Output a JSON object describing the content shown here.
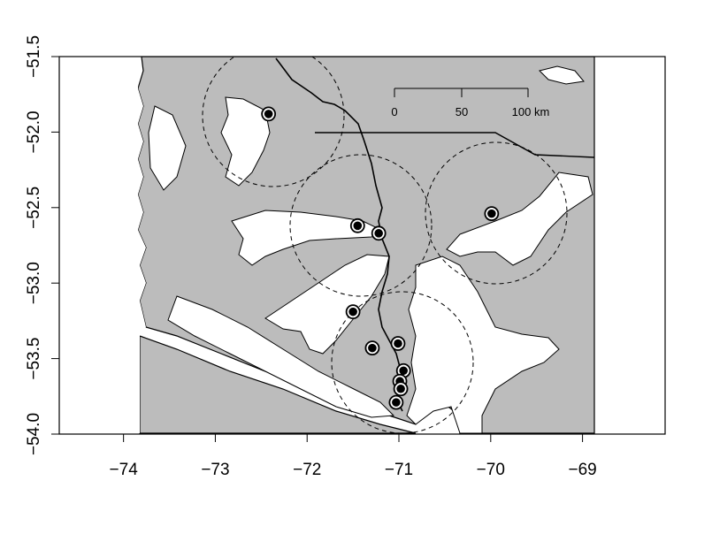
{
  "chart_data": {
    "type": "scatter",
    "x_ticks": [
      "−74",
      "−73",
      "−72",
      "−71",
      "−70",
      "−69"
    ],
    "x_tick_values": [
      -74,
      -73,
      -72,
      -71,
      -70,
      -69
    ],
    "y_ticks": [
      "−51.5",
      "−52.0",
      "−52.5",
      "−53.0",
      "−53.5",
      "−54.0"
    ],
    "y_tick_values": [
      -51.5,
      -52.0,
      -52.5,
      -53.0,
      -53.5,
      -54.0
    ],
    "xlim": [
      -74.7,
      -68.1
    ],
    "ylim": [
      -54.0,
      -51.5
    ],
    "grid": false,
    "scale_bar": {
      "labels": [
        "0",
        "50",
        "100 km"
      ]
    },
    "points": [
      {
        "x": -72.42,
        "y": -51.88
      },
      {
        "x": -71.45,
        "y": -52.62
      },
      {
        "x": -71.22,
        "y": -52.67
      },
      {
        "x": -69.99,
        "y": -52.54
      },
      {
        "x": -71.5,
        "y": -53.19
      },
      {
        "x": -71.01,
        "y": -53.4
      },
      {
        "x": -71.29,
        "y": -53.43
      },
      {
        "x": -70.95,
        "y": -53.58
      },
      {
        "x": -70.99,
        "y": -53.65
      },
      {
        "x": -70.98,
        "y": -53.7
      },
      {
        "x": -71.03,
        "y": -53.79
      }
    ],
    "colors": {
      "land": "#bcbcbc",
      "water": "#ffffff",
      "point_fill": "#000000",
      "point_ring": "#000000"
    }
  }
}
